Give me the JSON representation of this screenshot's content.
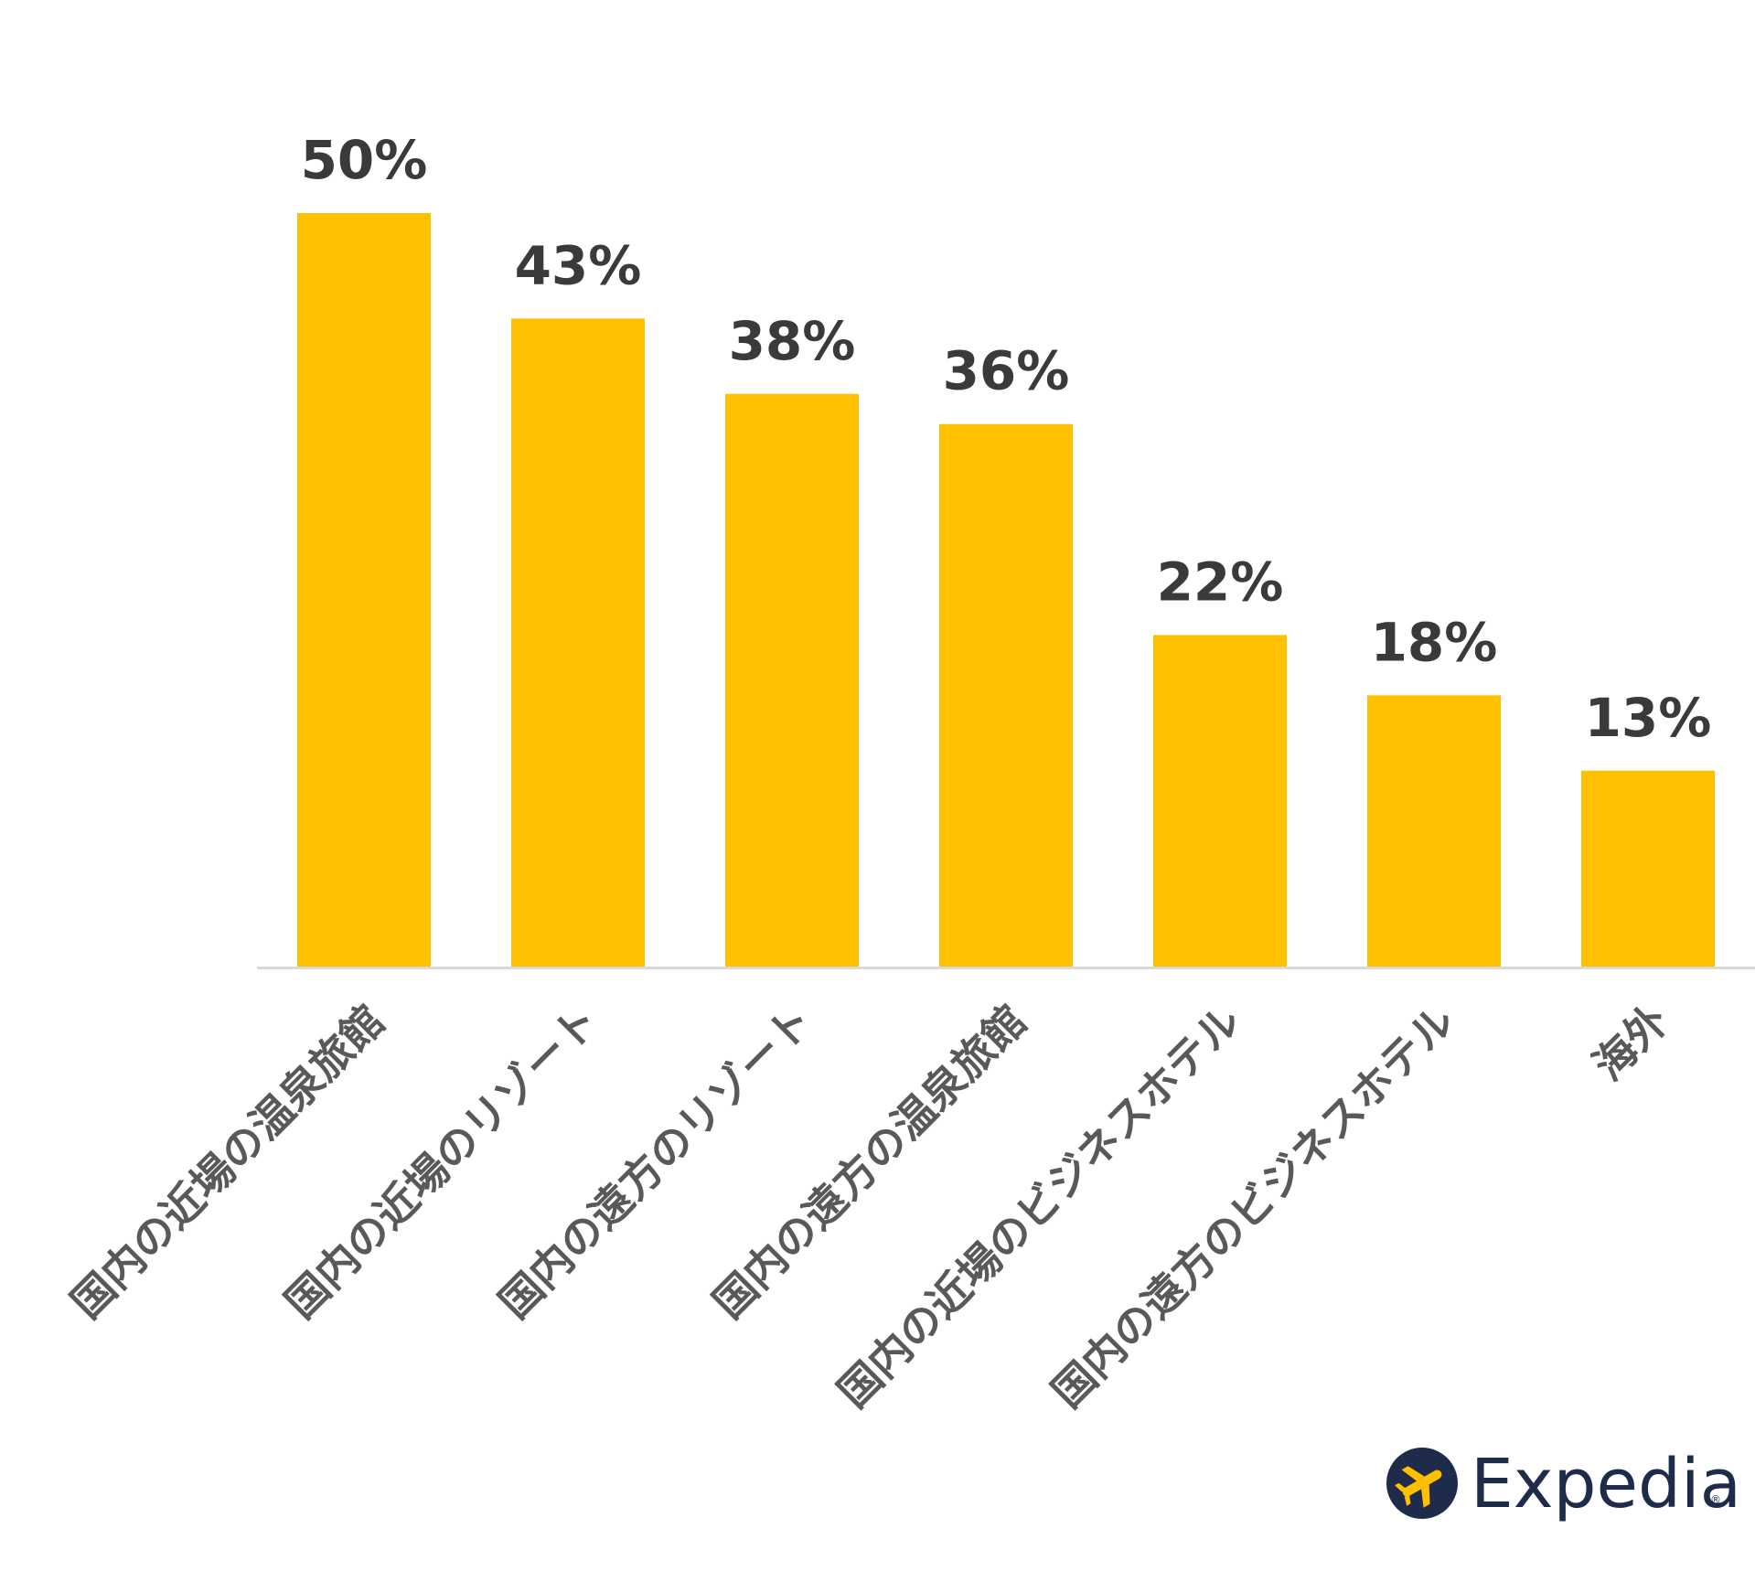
{
  "chart_data": {
    "type": "bar",
    "categories": [
      "国内の近場の温泉旅館",
      "国内の近場のリゾート",
      "国内の遠方のリゾート",
      "国内の遠方の温泉旅館",
      "国内の近場のビジネスホテル",
      "国内の遠方のビジネスホテル",
      "海外"
    ],
    "values": [
      50,
      43,
      38,
      36,
      22,
      18,
      13
    ],
    "value_labels": [
      "50%",
      "43%",
      "38%",
      "36%",
      "22%",
      "18%",
      "13%"
    ],
    "ylim": [
      0,
      50
    ],
    "grid": false,
    "bar_color": "#FFC000",
    "axis_color": "#D9D9D9"
  },
  "brand": {
    "name": "Expedia",
    "mark": "®",
    "icon": "airplane-icon",
    "color": "#1F2B4B",
    "icon_plane_color": "#FFC000"
  }
}
